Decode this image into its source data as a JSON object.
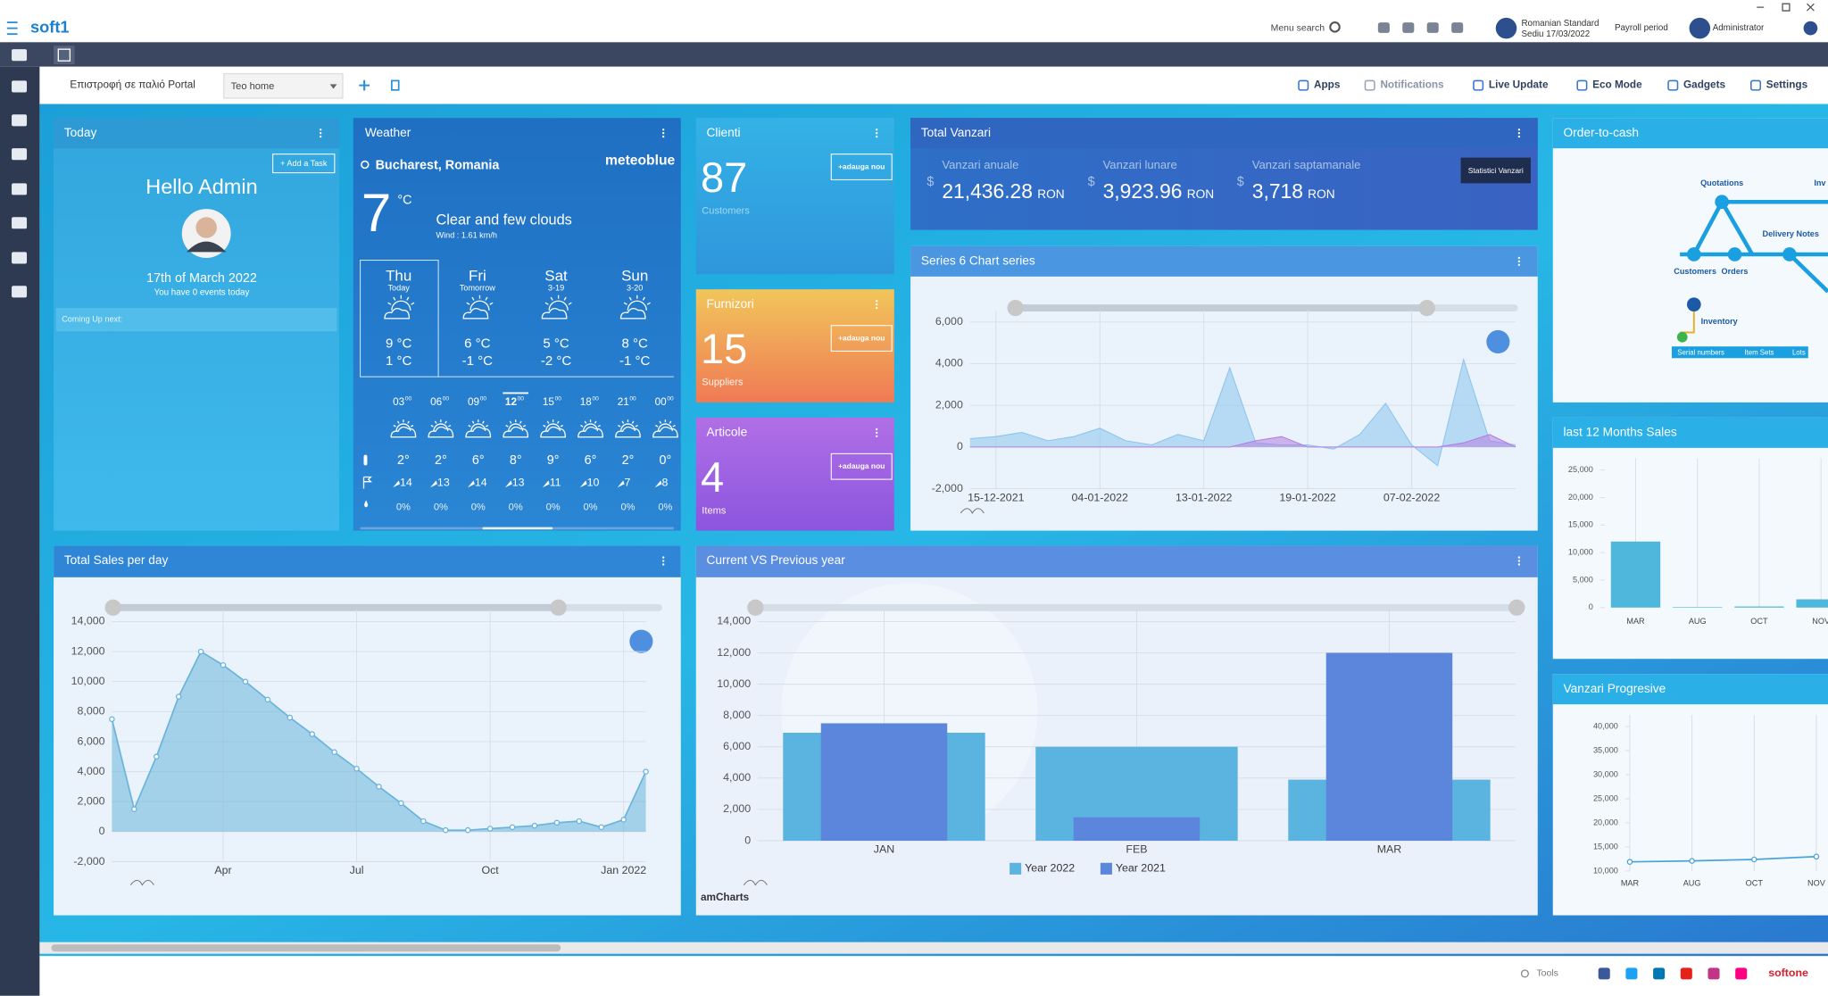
{
  "topbar": {
    "logo": "soft1",
    "menu_search": "Menu search",
    "company": "Romanian Standard",
    "branch": "Sediu 17/03/2022",
    "payroll": "Payroll period",
    "user": "Administrator"
  },
  "toolbar": {
    "back_link": "Επιστροφή σε παλιό Portal",
    "home": "Teo home",
    "links": [
      "Apps",
      "Notifications",
      "Live Update",
      "Eco Mode",
      "Gadgets",
      "Settings"
    ]
  },
  "today": {
    "title": "Today",
    "add_task": "+ Add a Task",
    "greeting": "Hello Admin",
    "date": "17th of March 2022",
    "events": "You have 0 events today",
    "coming": "Coming Up next:"
  },
  "weather": {
    "title": "Weather",
    "location": "Bucharest, Romania",
    "brand": "meteoblue",
    "temp": "7",
    "unit": "°C",
    "description": "Clear and few clouds",
    "wind": "Wind : 1.61 km/h",
    "days": [
      {
        "day": "Thu",
        "sub": "Today",
        "high": "9 °C",
        "low": "1 °C"
      },
      {
        "day": "Fri",
        "sub": "Tomorrow",
        "high": "6 °C",
        "low": "-1 °C"
      },
      {
        "day": "Sat",
        "sub": "3-19",
        "high": "5 °C",
        "low": "-2 °C"
      },
      {
        "day": "Sun",
        "sub": "3-20",
        "high": "8 °C",
        "low": "-1 °C"
      }
    ],
    "hours": [
      "03",
      "06",
      "09",
      "12",
      "15",
      "18",
      "21",
      "00"
    ],
    "minutes": "00",
    "temps": [
      "2°",
      "2°",
      "6°",
      "8°",
      "9°",
      "6°",
      "2°",
      "0°"
    ],
    "winds": [
      "14",
      "13",
      "14",
      "13",
      "11",
      "10",
      "7",
      "8"
    ],
    "precip": [
      "0%",
      "0%",
      "0%",
      "0%",
      "0%",
      "0%",
      "0%",
      "0%"
    ]
  },
  "counters": [
    {
      "title": "Clienti",
      "count": "87",
      "label": "Customers",
      "button": "+adauga nou"
    },
    {
      "title": "Furnizori",
      "count": "15",
      "label": "Suppliers",
      "button": "+adauga nou"
    },
    {
      "title": "Articole",
      "count": "4",
      "label": "Items",
      "button": "+adauga nou"
    }
  ],
  "total_vanzari": {
    "title": "Total Vanzari",
    "symbol": "$",
    "currency": "RON",
    "button": "Statistici Vanzari",
    "items": [
      {
        "label": "Vanzari anuale",
        "value": "21,436.28"
      },
      {
        "label": "Vanzari lunare",
        "value": "3,923.96"
      },
      {
        "label": "Vanzari saptamanale",
        "value": "3,718"
      }
    ]
  },
  "order_to_cash": {
    "title": "Order-to-cash",
    "nodes": [
      "Quotations",
      "Inv",
      "Delivery Notes",
      "Customers",
      "Orders",
      "Inventory"
    ],
    "tabs": [
      "Serial numbers",
      "Item Sets",
      "Lots"
    ]
  },
  "watermark": "amCharts",
  "footer": {
    "tools": "Tools",
    "brand": "softone"
  },
  "chart_data": [
    {
      "type": "area",
      "title": "Series 6 Chart series",
      "categories": [
        null,
        "15-12-2021",
        null,
        null,
        null,
        "04-01-2022",
        null,
        null,
        null,
        "13-01-2022",
        null,
        null,
        null,
        "19-01-2022",
        null,
        null,
        null,
        "07-02-2022",
        null,
        null,
        null,
        null
      ],
      "series": [
        {
          "color": "#8cc4ee",
          "values": [
            400,
            500,
            700,
            300,
            500,
            900,
            300,
            100,
            600,
            300,
            3800,
            200,
            100,
            100,
            -100,
            600,
            2100,
            100,
            -900,
            4200,
            300,
            100
          ]
        },
        {
          "color": "#b57ee0",
          "values": [
            0,
            0,
            0,
            0,
            0,
            0,
            0,
            0,
            0,
            0,
            0,
            300,
            500,
            0,
            0,
            0,
            0,
            0,
            0,
            200,
            600,
            0
          ]
        }
      ],
      "ylim": [
        -2000,
        6000
      ],
      "yticks": [
        {
          "value": -2000,
          "label": "-2,000"
        },
        0,
        {
          "value": 2000,
          "label": "2,000"
        },
        {
          "value": 4000,
          "label": "4,000"
        },
        {
          "value": 6000,
          "label": "6,000"
        }
      ],
      "grid": true
    },
    {
      "type": "area",
      "title": "Total Sales per day",
      "categories": [
        null,
        null,
        null,
        null,
        null,
        "Apr",
        null,
        null,
        null,
        null,
        null,
        "Jul",
        null,
        null,
        null,
        null,
        null,
        "Oct",
        null,
        null,
        null,
        null,
        null,
        "Jan 2022",
        null
      ],
      "values": [
        7500,
        1500,
        5000,
        9000,
        12000,
        11100,
        10000,
        8800,
        7600,
        6500,
        5300,
        4200,
        3000,
        1900,
        700,
        100,
        100,
        200,
        300,
        400,
        600,
        700,
        300,
        800,
        4000
      ],
      "color": "#6ab4dc",
      "ylim": [
        -2000,
        14000
      ],
      "yticks": [
        {
          "value": -2000,
          "label": "-2,000"
        },
        0,
        {
          "value": 2000,
          "label": "2,000"
        },
        {
          "value": 4000,
          "label": "4,000"
        },
        {
          "value": 6000,
          "label": "6,000"
        },
        {
          "value": 8000,
          "label": "8,000"
        },
        {
          "value": 10000,
          "label": "10,000"
        },
        {
          "value": 12000,
          "label": "12,000"
        },
        {
          "value": 14000,
          "label": "14,000"
        }
      ],
      "grid": true,
      "markers": true
    },
    {
      "type": "bar",
      "title": "Current VS Previous year",
      "categories": [
        "JAN",
        "FEB",
        "MAR"
      ],
      "series": [
        {
          "name": "Year 2022",
          "color": "#5bb3e0",
          "values": [
            6900,
            6000,
            3900
          ]
        },
        {
          "name": "Year 2021",
          "color": "#5b86dc",
          "values": [
            7500,
            1500,
            12000
          ]
        }
      ],
      "ylim": [
        0,
        14000
      ],
      "yticks": [
        0,
        {
          "value": 2000,
          "label": "2,000"
        },
        {
          "value": 4000,
          "label": "4,000"
        },
        {
          "value": 6000,
          "label": "6,000"
        },
        {
          "value": 8000,
          "label": "8,000"
        },
        {
          "value": 10000,
          "label": "10,000"
        },
        {
          "value": 12000,
          "label": "12,000"
        },
        {
          "value": 14000,
          "label": "14,000"
        }
      ],
      "grid": true,
      "overlap": true,
      "legend": "bottom"
    },
    {
      "type": "bar",
      "title": "last 12 Months Sales",
      "categories": [
        "MAR",
        "AUG",
        "OCT",
        "NOV"
      ],
      "values": [
        12000,
        100,
        200,
        1500
      ],
      "color": "#4fb6dc",
      "ylim": [
        0,
        25000
      ],
      "yticks": [
        0,
        {
          "value": 5000,
          "label": "5,000"
        },
        {
          "value": 10000,
          "label": "10,000"
        },
        {
          "value": 15000,
          "label": "15,000"
        },
        {
          "value": 20000,
          "label": "20,000"
        },
        {
          "value": 25000,
          "label": "25,000"
        }
      ],
      "grid": false
    },
    {
      "type": "line",
      "title": "Vanzari Progresive",
      "categories": [
        "MAR",
        "AUG",
        "OCT",
        "NOV"
      ],
      "values": [
        11900,
        12100,
        12400,
        13000
      ],
      "color": "#4aa3d8",
      "ylim": [
        10000,
        40000
      ],
      "yticks": [
        {
          "value": 10000,
          "label": "10,000"
        },
        {
          "value": 15000,
          "label": "15,000"
        },
        {
          "value": 20000,
          "label": "20,000"
        },
        {
          "value": 25000,
          "label": "25,000"
        },
        {
          "value": 30000,
          "label": "30,000"
        },
        {
          "value": 35000,
          "label": "35,000"
        },
        {
          "value": 40000,
          "label": "40,000"
        }
      ],
      "grid": false,
      "markers": true
    }
  ]
}
